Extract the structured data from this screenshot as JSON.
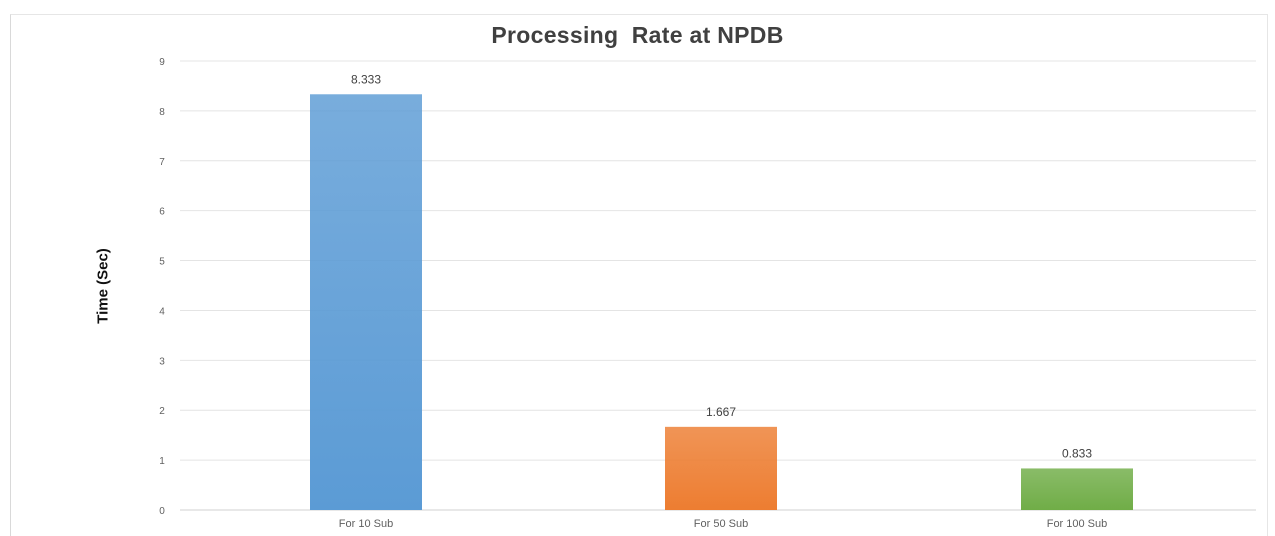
{
  "chart_data": {
    "type": "bar",
    "title": "Processing  Rate at NPDB",
    "xlabel": "",
    "ylabel": "Time (Sec)",
    "categories": [
      "For 10 Sub",
      "For 50 Sub",
      "For 100 Sub"
    ],
    "values": [
      8.333,
      1.667,
      0.833
    ],
    "data_labels": [
      "8.333",
      "1.667",
      "0.833"
    ],
    "ylim": [
      0,
      9
    ],
    "yticks": [
      0,
      1,
      2,
      3,
      4,
      5,
      6,
      7,
      8,
      9
    ],
    "grid": true,
    "colors": [
      "#5b9bd5",
      "#ed7d31",
      "#70ad47"
    ],
    "gridline_color": "#e4e4e4",
    "axis_color": "#d0d0d0",
    "tick_label_color": "#606060"
  }
}
